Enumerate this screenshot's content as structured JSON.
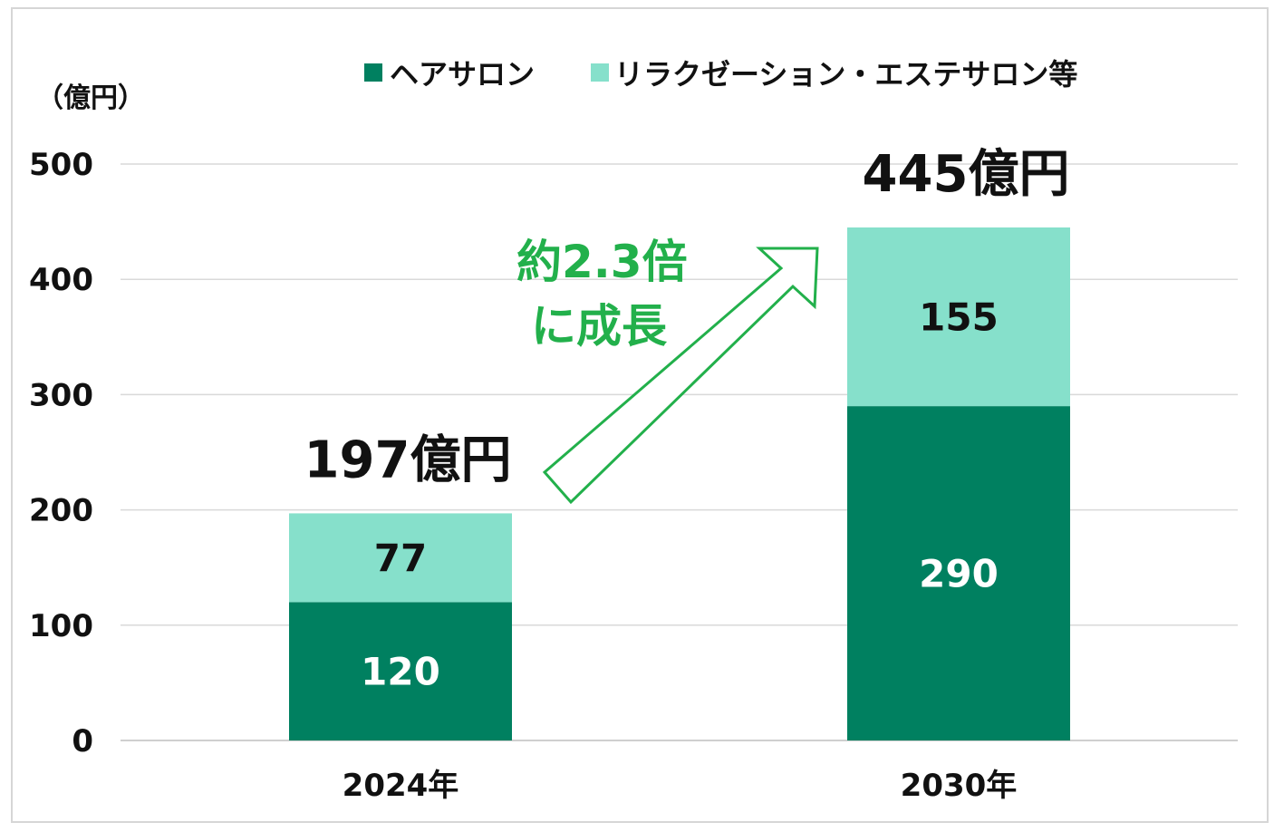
{
  "chart_data": {
    "type": "bar",
    "stacked": true,
    "categories": [
      "2024年",
      "2030年"
    ],
    "series": [
      {
        "name": "ヘアサロン",
        "values": [
          120,
          290
        ],
        "color": "#008060"
      },
      {
        "name": "リラクゼーション・エステサロン等",
        "values": [
          77,
          155
        ],
        "color": "#86e0cb"
      }
    ],
    "totals": [
      "197億円",
      "445億円"
    ],
    "unit_label": "（億円）",
    "ylim": [
      0,
      500
    ],
    "yticks": [
      0,
      100,
      200,
      300,
      400,
      500
    ],
    "grid": true,
    "legend_position": "top",
    "annotation": {
      "line1": "約2.3倍",
      "line2": "に成長",
      "color": "#22b04b"
    },
    "segment_label_colors": [
      "#ffffff",
      "#111111"
    ]
  }
}
